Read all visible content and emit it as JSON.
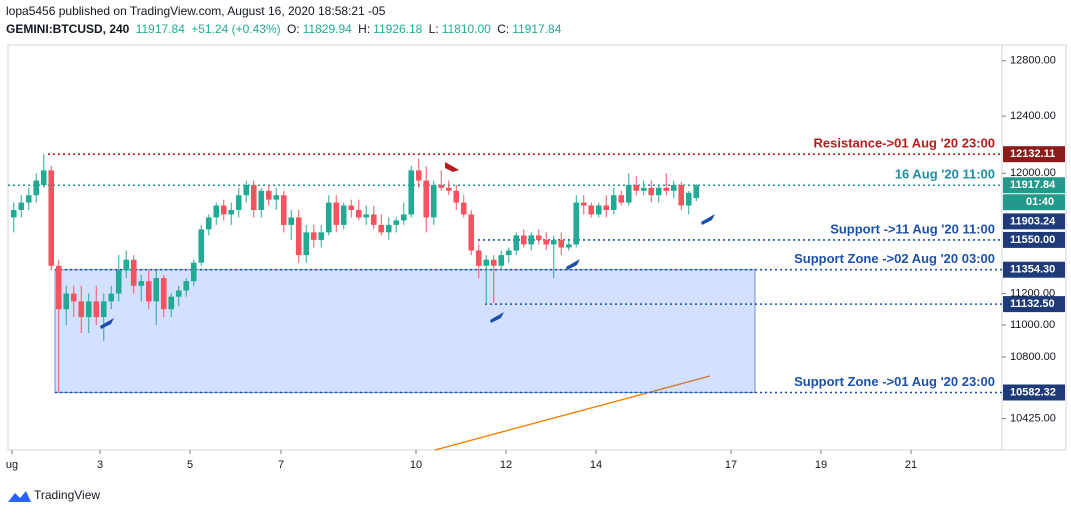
{
  "chart_data": {
    "type": "candlestick",
    "header": {
      "publisher": "lopa5456 published on TradingView.com, August 16, 2020 18:58:21 -05",
      "symbol": "GEMINI:BTCUSD, 240",
      "last": "11917.84",
      "change": "+51.24 (+0.43%)",
      "o_label": "O:",
      "o": "11829.94",
      "h_label": "H:",
      "h": "11926.18",
      "l_label": "L:",
      "l": "11810.00",
      "c_label": "C:",
      "c": "11917.84"
    },
    "brand": "TradingView",
    "countdown": "01:40",
    "log_scale": true,
    "ylim": [
      10239,
      12916
    ],
    "yticks": [
      {
        "value": 12800,
        "label": "12800.00"
      },
      {
        "value": 12400,
        "label": "12400.00"
      },
      {
        "value": 12000,
        "label": "12000.00"
      },
      {
        "value": 11200,
        "label": "11200.00"
      },
      {
        "value": 11000,
        "label": "11000.00"
      },
      {
        "value": 10800,
        "label": "10800.00"
      },
      {
        "value": 10425,
        "label": "10425.00"
      }
    ],
    "xticks": [
      "ug",
      "3",
      "5",
      "7",
      "10",
      "12",
      "14",
      "17",
      "19",
      "21"
    ],
    "up_color": "#22ab94",
    "down_color": "#f7525f",
    "candles": [
      [
        11700,
        11800,
        11600,
        11750
      ],
      [
        11750,
        11850,
        11700,
        11800
      ],
      [
        11800,
        11900,
        11750,
        11850
      ],
      [
        11850,
        12000,
        11800,
        11950
      ],
      [
        11920,
        12132,
        11900,
        12020
      ],
      [
        12020,
        12050,
        11350,
        11380
      ],
      [
        11380,
        11420,
        10582,
        11100
      ],
      [
        11100,
        11250,
        11000,
        11200
      ],
      [
        11200,
        11250,
        11050,
        11150
      ],
      [
        11150,
        11250,
        10950,
        11050
      ],
      [
        11050,
        11200,
        10950,
        11150
      ],
      [
        11150,
        11250,
        11000,
        11050
      ],
      [
        11050,
        11200,
        10900,
        11150
      ],
      [
        11150,
        11250,
        11100,
        11200
      ],
      [
        11200,
        11450,
        11150,
        11350
      ],
      [
        11350,
        11480,
        11300,
        11420
      ],
      [
        11420,
        11450,
        11200,
        11250
      ],
      [
        11250,
        11320,
        11150,
        11280
      ],
      [
        11280,
        11350,
        11100,
        11150
      ],
      [
        11150,
        11350,
        11000,
        11300
      ],
      [
        11300,
        11320,
        11050,
        11100
      ],
      [
        11100,
        11200,
        11050,
        11180
      ],
      [
        11180,
        11250,
        11120,
        11220
      ],
      [
        11220,
        11300,
        11180,
        11280
      ],
      [
        11280,
        11420,
        11250,
        11400
      ],
      [
        11400,
        11650,
        11380,
        11620
      ],
      [
        11620,
        11720,
        11580,
        11700
      ],
      [
        11700,
        11800,
        11650,
        11780
      ],
      [
        11780,
        11820,
        11680,
        11720
      ],
      [
        11720,
        11800,
        11650,
        11750
      ],
      [
        11750,
        11900,
        11700,
        11850
      ],
      [
        11850,
        11950,
        11800,
        11920
      ],
      [
        11920,
        11950,
        11700,
        11750
      ],
      [
        11750,
        11900,
        11700,
        11880
      ],
      [
        11880,
        11920,
        11780,
        11820
      ],
      [
        11820,
        11900,
        11750,
        11850
      ],
      [
        11850,
        11880,
        11600,
        11650
      ],
      [
        11650,
        11750,
        11550,
        11700
      ],
      [
        11700,
        11750,
        11400,
        11450
      ],
      [
        11450,
        11650,
        11400,
        11600
      ],
      [
        11600,
        11650,
        11500,
        11550
      ],
      [
        11550,
        11650,
        11500,
        11600
      ],
      [
        11600,
        11850,
        11580,
        11800
      ],
      [
        11800,
        11850,
        11600,
        11650
      ],
      [
        11650,
        11800,
        11620,
        11780
      ],
      [
        11780,
        11820,
        11700,
        11750
      ],
      [
        11750,
        11820,
        11680,
        11700
      ],
      [
        11700,
        11780,
        11650,
        11720
      ],
      [
        11720,
        11780,
        11620,
        11650
      ],
      [
        11650,
        11720,
        11580,
        11600
      ],
      [
        11600,
        11700,
        11550,
        11650
      ],
      [
        11650,
        11700,
        11600,
        11680
      ],
      [
        11680,
        11800,
        11650,
        11720
      ],
      [
        11720,
        12050,
        11700,
        12020
      ],
      [
        12020,
        12100,
        11900,
        11950
      ],
      [
        11950,
        12050,
        11600,
        11700
      ],
      [
        11700,
        11950,
        11650,
        11920
      ],
      [
        11920,
        12020,
        11880,
        11900
      ],
      [
        11900,
        11950,
        11850,
        11880
      ],
      [
        11880,
        11920,
        11750,
        11800
      ],
      [
        11800,
        11850,
        11700,
        11720
      ],
      [
        11720,
        11750,
        11450,
        11480
      ],
      [
        11480,
        11520,
        11300,
        11380
      ],
      [
        11380,
        11450,
        11132,
        11420
      ],
      [
        11420,
        11450,
        11140,
        11380
      ],
      [
        11380,
        11480,
        11350,
        11450
      ],
      [
        11450,
        11500,
        11400,
        11480
      ],
      [
        11480,
        11600,
        11450,
        11580
      ],
      [
        11580,
        11620,
        11500,
        11520
      ],
      [
        11520,
        11600,
        11480,
        11580
      ],
      [
        11580,
        11620,
        11520,
        11550
      ],
      [
        11550,
        11600,
        11480,
        11520
      ],
      [
        11520,
        11580,
        11300,
        11550
      ],
      [
        11550,
        11600,
        11450,
        11500
      ],
      [
        11500,
        11550,
        11480,
        11520
      ],
      [
        11520,
        11850,
        11500,
        11800
      ],
      [
        11800,
        11850,
        11720,
        11780
      ],
      [
        11780,
        11800,
        11700,
        11720
      ],
      [
        11720,
        11800,
        11700,
        11780
      ],
      [
        11780,
        11850,
        11700,
        11750
      ],
      [
        11750,
        11900,
        11720,
        11850
      ],
      [
        11850,
        11880,
        11780,
        11800
      ],
      [
        11800,
        12000,
        11780,
        11920
      ],
      [
        11920,
        11980,
        11850,
        11880
      ],
      [
        11880,
        11950,
        11850,
        11900
      ],
      [
        11900,
        11950,
        11800,
        11850
      ],
      [
        11850,
        11920,
        11800,
        11900
      ],
      [
        11900,
        12000,
        11850,
        11880
      ],
      [
        11880,
        11950,
        11830,
        11920
      ],
      [
        11920,
        11940,
        11750,
        11780
      ],
      [
        11780,
        11880,
        11720,
        11866.6
      ],
      [
        11829.94,
        11926.18,
        11810,
        11917.84
      ]
    ],
    "levels": [
      {
        "value": 12132.11,
        "label": "12132.11",
        "note": "Resistance->01 Aug '20 23:00",
        "color": "#b71c1c",
        "box": "#8b1a1a"
      },
      {
        "value": 11917.84,
        "label": "11917.84",
        "note": "16 Aug '20 11:00",
        "color": "#1e8fa0",
        "box": "#22998a"
      },
      {
        "value": 11903.24,
        "label": "11903.24",
        "color": "#1e3a78",
        "box": "#1e3a78"
      },
      {
        "value": 11550,
        "label": "11550.00",
        "note": "Support ->11 Aug '20 11:00",
        "color": "#1e50a8",
        "box": "#1e3a78"
      },
      {
        "value": 11354.3,
        "label": "11354.30",
        "note": "Support Zone ->02 Aug '20 03:00",
        "color": "#1e50a8",
        "box": "#1e3a78"
      },
      {
        "value": 11132.5,
        "label": "11132.50",
        "color": "#1e50a8",
        "box": "#1e3a78"
      },
      {
        "value": 10582.32,
        "label": "10582.32",
        "note": "Support Zone ->01 Aug '20 23:00",
        "color": "#1e50a8",
        "box": "#1e3a78"
      }
    ]
  }
}
